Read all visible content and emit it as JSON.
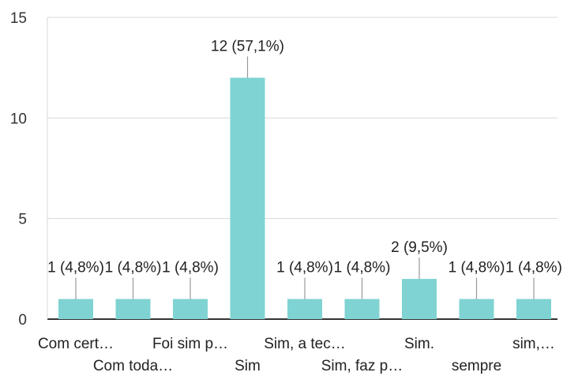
{
  "chart_data": {
    "type": "bar",
    "categories": [
      "Com cert…",
      "Com toda…",
      "Foi sim p…",
      "Sim",
      "Sim, a tec…",
      "Sim, faz p…",
      "Sim.",
      "sempre",
      "sim,…"
    ],
    "values": [
      1,
      1,
      1,
      12,
      1,
      1,
      2,
      1,
      1
    ],
    "data_labels": [
      "1 (4,8%)",
      "1 (4,8%)",
      "1 (4,8%)",
      "12 (57,1%)",
      "1 (4,8%)",
      "1 (4,8%)",
      "2 (9,5%)",
      "1 (4,8%)",
      "1 (4,8%)"
    ],
    "y_ticks": [
      "0",
      "5",
      "10",
      "15"
    ],
    "ylim": [
      0,
      15
    ],
    "title": "",
    "xlabel": "",
    "ylabel": "",
    "grid": true,
    "bar_color": "#7fd3d2",
    "label_line_color": "#999999"
  }
}
